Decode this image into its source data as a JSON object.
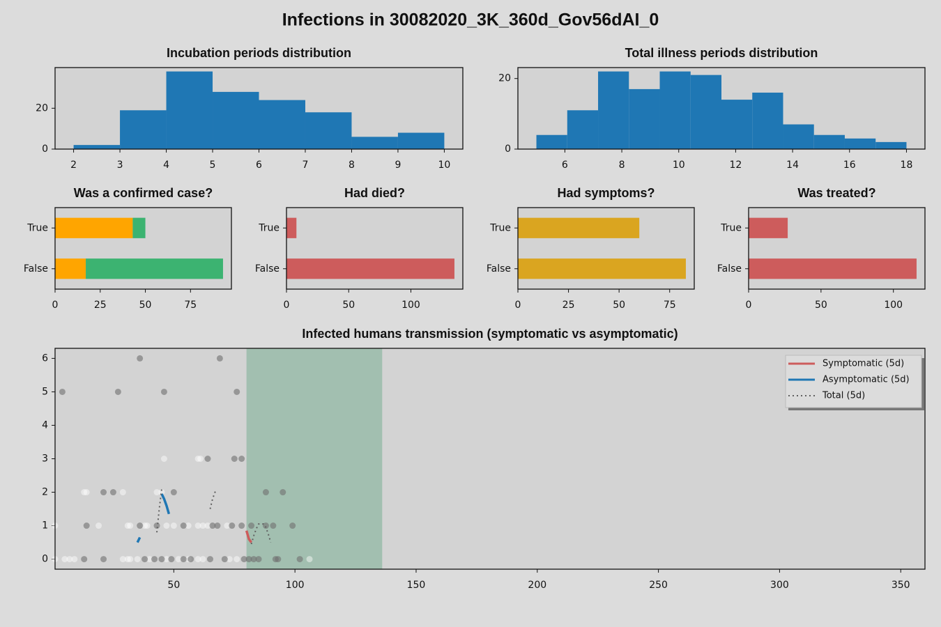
{
  "title": "Infections in 30082020_3K_360d_Gov56dAI_0",
  "chart_data": [
    {
      "type": "histogram",
      "title": "Incubation periods distribution",
      "color": "#1f77b4",
      "bins": [
        2,
        3,
        4,
        5,
        6,
        7,
        8,
        9,
        10
      ],
      "values": [
        2,
        19,
        38,
        28,
        24,
        18,
        6,
        8
      ],
      "xlim": [
        1.6,
        10.4
      ],
      "xticks": [
        2,
        3,
        4,
        5,
        6,
        7,
        8,
        9,
        10
      ],
      "ylim": [
        0,
        39.9
      ],
      "yticks": [
        0,
        20
      ]
    },
    {
      "type": "histogram",
      "title": "Total illness periods distribution",
      "color": "#1f77b4",
      "bins": [
        5,
        6.0833,
        7.1667,
        8.25,
        9.3333,
        10.4167,
        11.5,
        12.5833,
        13.6667,
        14.75,
        15.8333,
        16.9167,
        18
      ],
      "values": [
        4,
        11,
        22,
        17,
        22,
        21,
        14,
        16,
        7,
        4,
        3,
        2
      ],
      "xlim": [
        4.35,
        18.65
      ],
      "xticks": [
        6,
        8,
        10,
        12,
        14,
        16,
        18
      ],
      "ylim": [
        0,
        23.1
      ],
      "yticks": [
        0,
        20
      ]
    },
    {
      "type": "barh",
      "title": "Was a confirmed case?",
      "categories": [
        "True",
        "False"
      ],
      "series": [
        {
          "color": "#ffa500",
          "values": [
            43,
            17
          ]
        },
        {
          "color": "#3cb371",
          "values": [
            7,
            76
          ]
        }
      ],
      "xlim": [
        0,
        97.65
      ],
      "xticks": [
        0,
        25,
        50,
        75
      ]
    },
    {
      "type": "barh",
      "title": "Had died?",
      "categories": [
        "True",
        "False"
      ],
      "series": [
        {
          "color": "#cd5c5c",
          "values": [
            8,
            135
          ]
        }
      ],
      "xlim": [
        0,
        141.75
      ],
      "xticks": [
        0,
        50,
        100
      ]
    },
    {
      "type": "barh",
      "title": "Had symptoms?",
      "categories": [
        "True",
        "False"
      ],
      "series": [
        {
          "color": "#daa520",
          "values": [
            60,
            83
          ]
        }
      ],
      "xlim": [
        0,
        87.15
      ],
      "xticks": [
        0,
        25,
        50,
        75
      ]
    },
    {
      "type": "barh",
      "title": "Was treated?",
      "categories": [
        "True",
        "False"
      ],
      "series": [
        {
          "color": "#cd5c5c",
          "values": [
            27,
            116
          ]
        }
      ],
      "xlim": [
        0,
        121.8
      ],
      "xticks": [
        0,
        50,
        100
      ]
    },
    {
      "type": "scatter",
      "title": "Infected humans transmission (symptomatic vs asymptomatic)",
      "xlim": [
        1,
        360
      ],
      "xticks": [
        50,
        100,
        150,
        200,
        250,
        300,
        350
      ],
      "ylim": [
        -0.3,
        6.3
      ],
      "yticks": [
        0,
        1,
        2,
        3,
        4,
        5,
        6
      ],
      "span": {
        "start": 80,
        "end": 136,
        "color": "#a2bfb0"
      },
      "legend": "upper right",
      "series": [
        {
          "kind": "points",
          "color": "#ffffff",
          "alpha": 0.45,
          "x": [
            1,
            5,
            7,
            9,
            29,
            31,
            32,
            35,
            40,
            47,
            52,
            56,
            60,
            62,
            73,
            76,
            106,
            1,
            19,
            31,
            32,
            38,
            39,
            47,
            50,
            56,
            60,
            62,
            64,
            72,
            13,
            14,
            29,
            43,
            45,
            46,
            60,
            61
          ],
          "values": [
            0,
            0,
            0,
            0,
            0,
            0,
            0,
            0,
            0,
            0,
            0,
            0,
            0,
            0,
            0,
            0,
            0,
            1,
            1,
            1,
            1,
            1,
            1,
            1,
            1,
            1,
            1,
            1,
            1,
            1,
            2,
            2,
            2,
            2,
            2,
            3,
            3,
            3
          ]
        },
        {
          "kind": "points",
          "color": "#707070",
          "alpha": 0.6,
          "x": [
            13,
            21,
            38,
            42,
            45,
            49,
            54,
            57,
            65,
            71,
            79,
            81,
            83,
            85,
            92,
            93,
            102,
            14,
            36,
            43,
            54,
            66,
            68,
            74,
            78,
            82,
            88,
            91,
            99,
            21,
            25,
            50,
            88,
            95,
            64,
            75,
            78,
            4,
            27,
            46,
            76,
            36,
            69
          ],
          "values": [
            0,
            0,
            0,
            0,
            0,
            0,
            0,
            0,
            0,
            0,
            0,
            0,
            0,
            0,
            0,
            0,
            0,
            1,
            1,
            1,
            1,
            1,
            1,
            1,
            1,
            1,
            1,
            1,
            1,
            2,
            2,
            2,
            2,
            2,
            3,
            3,
            3,
            5,
            5,
            5,
            5,
            6,
            6
          ]
        },
        {
          "kind": "line",
          "name": "Symptomatic (5d)",
          "color": "#cd5c5c",
          "width": 3.5,
          "x": [
            80,
            81,
            82
          ],
          "values": [
            0.85,
            0.6,
            0.5
          ]
        },
        {
          "kind": "line",
          "name": "Asymptomatic (5d)",
          "color": "#1f77b4",
          "width": 3.5,
          "x": [
            35,
            36,
            40,
            45,
            46,
            47,
            48
          ],
          "values": [
            0.5,
            0.65,
            null,
            1.95,
            1.8,
            1.6,
            1.35
          ]
        },
        {
          "kind": "line",
          "name": "Total (5d)",
          "color": "#606060",
          "width": 2,
          "dash": "dotted",
          "x": [
            43,
            44,
            45,
            55,
            65,
            66,
            67,
            68,
            75,
            82,
            83,
            84,
            85,
            86,
            87,
            88,
            89,
            90
          ],
          "values": [
            0.8,
            1.5,
            2.1,
            null,
            1.5,
            1.8,
            2.0,
            2.05,
            null,
            0.45,
            0.7,
            0.9,
            1.05,
            1.05,
            1.05,
            0.95,
            0.75,
            0.5
          ]
        }
      ]
    }
  ]
}
